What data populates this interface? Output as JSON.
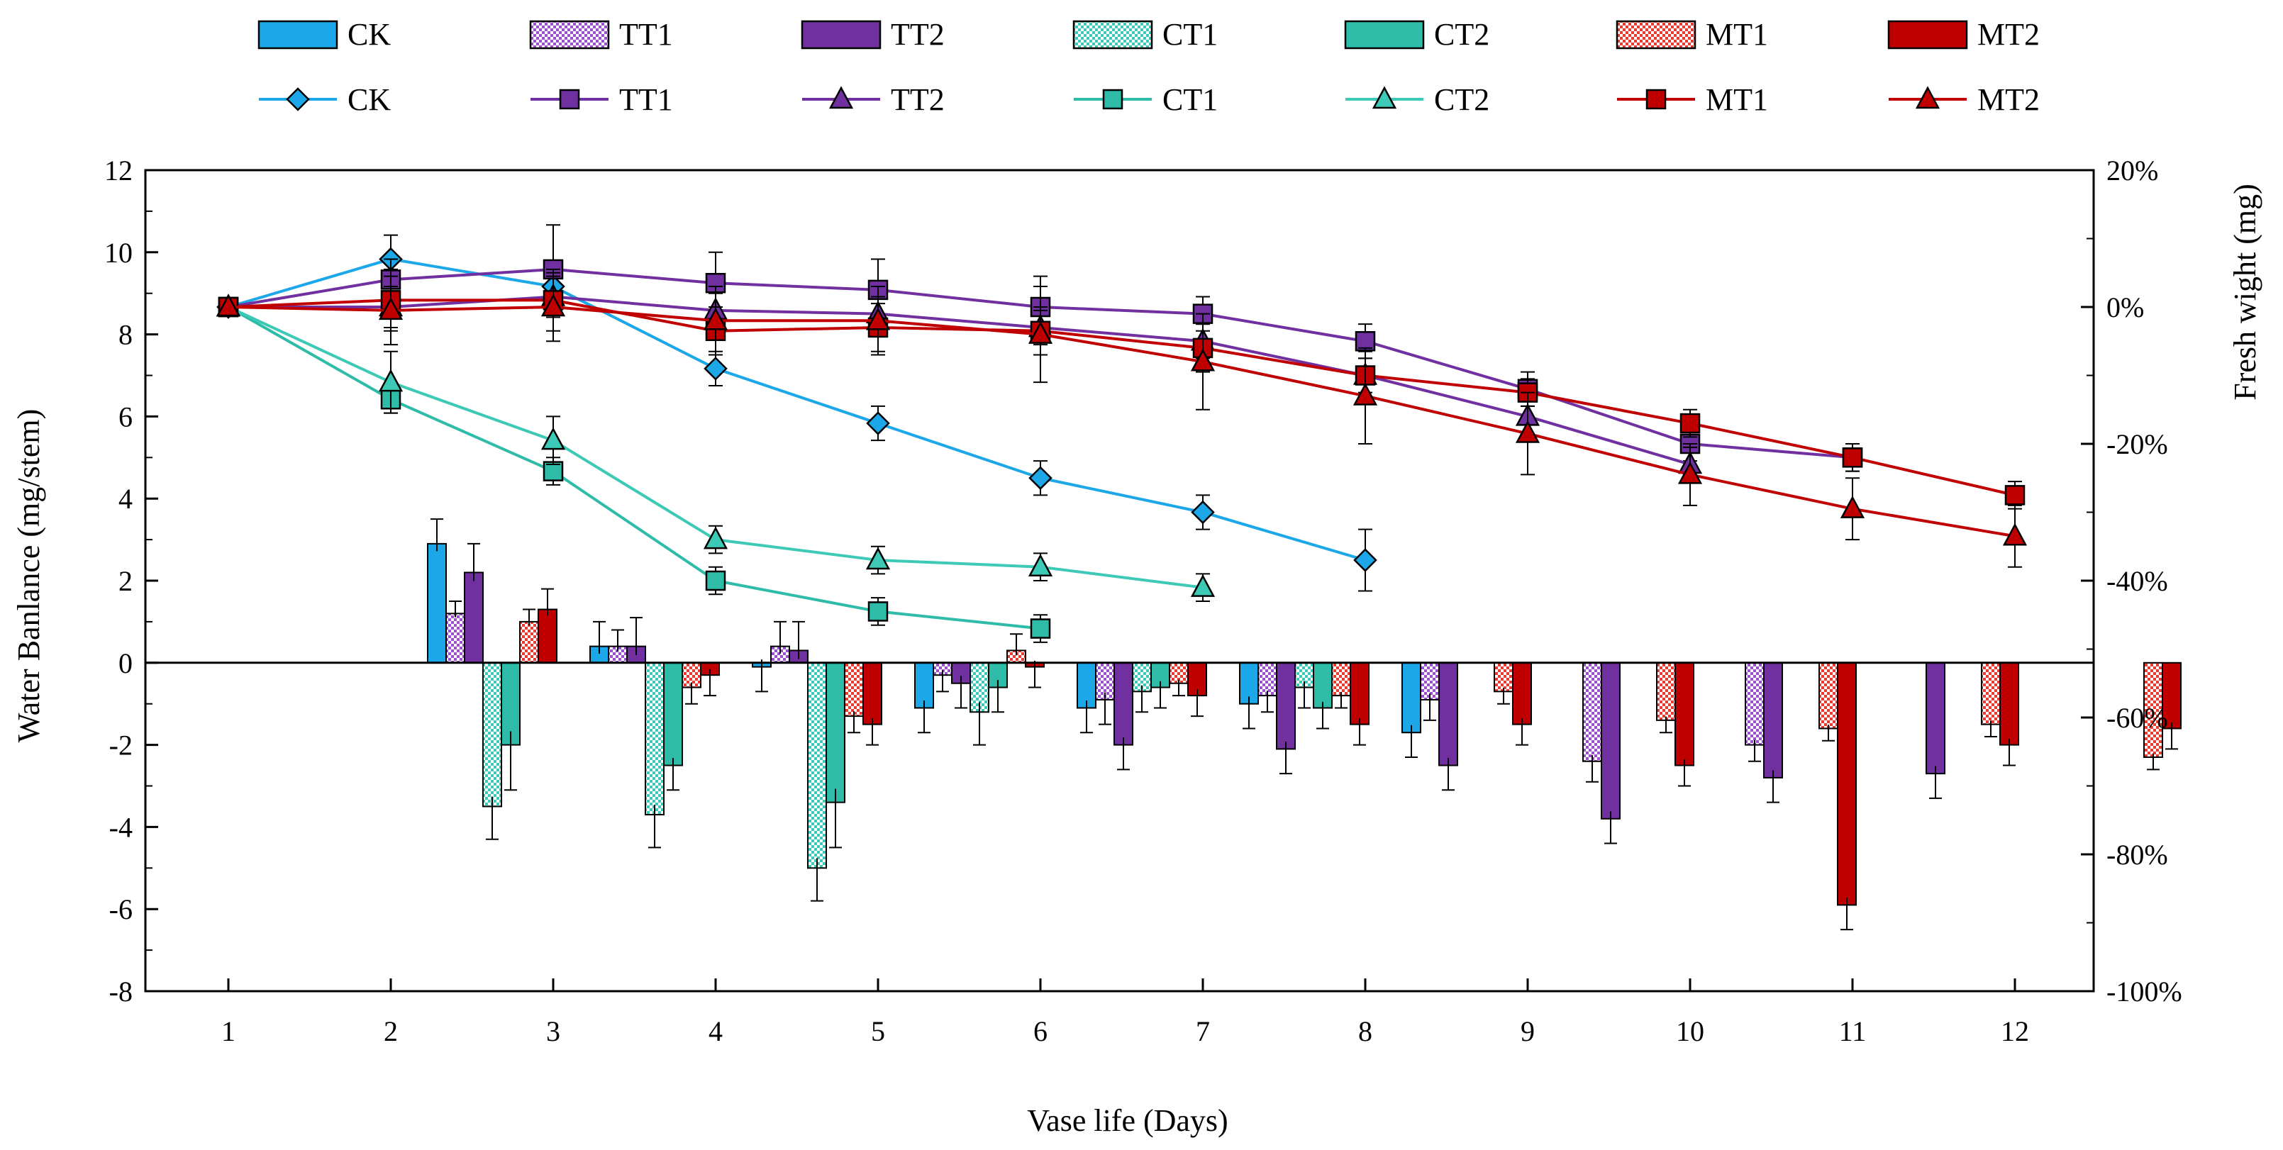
{
  "chart_data": {
    "type": "bar+line",
    "xlabel": "Vase life (Days)",
    "ylabel_left": "Water Banlance (mg/stem)",
    "ylabel_right": "Fresh wight (mg)",
    "categories": [
      "1",
      "2",
      "3",
      "4",
      "5",
      "6",
      "7",
      "8",
      "9",
      "10",
      "11",
      "12"
    ],
    "ylim_left": [
      -8,
      12
    ],
    "yticks_left": [
      "12",
      "10",
      "8",
      "6",
      "4",
      "2",
      "0",
      "-2",
      "-4",
      "-6",
      "-8"
    ],
    "ylim_right": [
      -100,
      20
    ],
    "yticks_right": [
      "20%",
      "0%",
      "-20%",
      "-40%",
      "-60%",
      "-80%",
      "-100%"
    ],
    "legend_position": "top",
    "bar_series": [
      {
        "name": "CK",
        "pattern": "solid",
        "color": "#1CA7E8",
        "values": [
          null,
          2.9,
          0.4,
          -0.1,
          -1.1,
          -1.1,
          -1.0,
          -1.7,
          null,
          null,
          null,
          null
        ],
        "errors": [
          null,
          0.6,
          0.6,
          0.6,
          0.6,
          0.6,
          0.6,
          0.6,
          null,
          null,
          null,
          null
        ]
      },
      {
        "name": "TT1",
        "pattern": "checker",
        "color": "#9B4FD0",
        "values": [
          null,
          1.2,
          0.4,
          0.4,
          -0.3,
          -0.9,
          -0.8,
          -0.9,
          -2.4,
          -2.0,
          null,
          null
        ],
        "errors": [
          null,
          0.3,
          0.4,
          0.6,
          0.4,
          0.6,
          0.4,
          0.5,
          0.5,
          0.4,
          null,
          null
        ]
      },
      {
        "name": "TT2",
        "pattern": "solid",
        "color": "#7030A0",
        "values": [
          null,
          2.2,
          0.4,
          0.3,
          -0.5,
          -2.0,
          -2.1,
          -2.5,
          -3.8,
          -2.8,
          -2.7,
          null
        ],
        "errors": [
          null,
          0.7,
          0.7,
          0.7,
          0.6,
          0.6,
          0.6,
          0.6,
          0.6,
          0.6,
          0.6,
          null
        ]
      },
      {
        "name": "CT1",
        "pattern": "checker",
        "color": "#3CC9B5",
        "values": [
          null,
          -3.5,
          -3.7,
          -5.0,
          -1.2,
          -0.7,
          -0.6,
          null,
          null,
          null,
          null,
          null
        ],
        "errors": [
          null,
          0.8,
          0.8,
          0.8,
          0.8,
          0.5,
          0.5,
          null,
          null,
          null,
          null,
          null
        ]
      },
      {
        "name": "CT2",
        "pattern": "solid",
        "color": "#2EBCA8",
        "values": [
          null,
          -2.0,
          -2.5,
          -3.4,
          -0.6,
          -0.6,
          -1.1,
          null,
          null,
          null,
          null,
          null
        ],
        "errors": [
          null,
          1.1,
          0.6,
          1.1,
          0.6,
          0.5,
          0.5,
          null,
          null,
          null,
          null,
          null
        ]
      },
      {
        "name": "MT1",
        "pattern": "checker",
        "color": "#E83A2E",
        "values": [
          null,
          1.0,
          -0.6,
          -1.3,
          0.3,
          -0.5,
          -0.8,
          -0.7,
          -1.4,
          -1.6,
          -1.5,
          -2.3
        ],
        "errors": [
          null,
          0.3,
          0.4,
          0.4,
          0.4,
          0.3,
          0.3,
          0.3,
          0.3,
          0.3,
          0.3,
          0.3
        ]
      },
      {
        "name": "MT2",
        "pattern": "solid",
        "color": "#C00000",
        "values": [
          null,
          1.3,
          -0.3,
          -1.5,
          -0.1,
          -0.8,
          -1.5,
          -1.5,
          -2.5,
          -5.9,
          -2.0,
          -1.6
        ],
        "errors": [
          null,
          0.5,
          0.5,
          0.5,
          0.5,
          0.5,
          0.5,
          0.5,
          0.5,
          0.6,
          0.5,
          0.5
        ]
      }
    ],
    "line_series": [
      {
        "name": "CK",
        "marker": "diamond",
        "color": "#1CA7E8",
        "values": [
          0,
          7,
          3,
          -9,
          -17,
          -25,
          -30,
          -37,
          null,
          null,
          null,
          null
        ],
        "errors": [
          0,
          3.5,
          3.5,
          2.5,
          2.5,
          2.5,
          2.5,
          4.5,
          null,
          null,
          null,
          null
        ]
      },
      {
        "name": "TT1",
        "marker": "square",
        "color": "#7030A0",
        "values": [
          0,
          4,
          5.5,
          3.5,
          2.5,
          0,
          -1,
          -5,
          -12,
          -20,
          -22,
          null
        ],
        "errors": [
          0,
          3,
          6.5,
          4.5,
          4.5,
          4.5,
          2.5,
          2.5,
          2.5,
          2.5,
          2,
          null
        ]
      },
      {
        "name": "TT2",
        "marker": "triangle",
        "color": "#7030A0",
        "values": [
          0,
          0,
          1.5,
          -0.5,
          -1,
          -3,
          -5,
          -10,
          -16,
          -23,
          null,
          null
        ],
        "errors": [
          0,
          3,
          3,
          2.5,
          2.5,
          2.5,
          2.5,
          2.5,
          2.5,
          2.5,
          null,
          null
        ]
      },
      {
        "name": "CT1",
        "marker": "square",
        "color": "#2EBCA8",
        "values": [
          0,
          -13.5,
          -24,
          -40,
          -44.5,
          -47,
          null,
          null,
          null,
          null,
          null,
          null
        ],
        "errors": [
          0,
          2,
          2,
          2,
          2,
          2,
          null,
          null,
          null,
          null,
          null,
          null
        ]
      },
      {
        "name": "CT2",
        "marker": "triangle",
        "color": "#3CC9B5",
        "values": [
          0,
          -11,
          -19.5,
          -34,
          -37,
          -38,
          -41,
          null,
          null,
          null,
          null,
          null
        ],
        "errors": [
          0,
          4.5,
          3.5,
          2,
          2,
          2,
          2,
          null,
          null,
          null,
          null,
          null
        ]
      },
      {
        "name": "MT1",
        "marker": "square",
        "color": "#C00000",
        "values": [
          0,
          1,
          1,
          -3.5,
          -3,
          -3.5,
          -6,
          -10,
          -12.5,
          -17,
          -22,
          -27.5
        ],
        "errors": [
          0,
          4.5,
          4.5,
          3.5,
          3.5,
          3.5,
          3.5,
          3.5,
          2,
          2,
          2,
          2
        ]
      },
      {
        "name": "MT2",
        "marker": "triangle",
        "color": "#C00000",
        "values": [
          0,
          -0.5,
          0,
          -2,
          -2,
          -4,
          -8,
          -13,
          -18.5,
          -24.5,
          -29.5,
          -33.5
        ],
        "errors": [
          0,
          5,
          5,
          5,
          5,
          7,
          7,
          7,
          6,
          4.5,
          4.5,
          4.5
        ]
      }
    ]
  }
}
